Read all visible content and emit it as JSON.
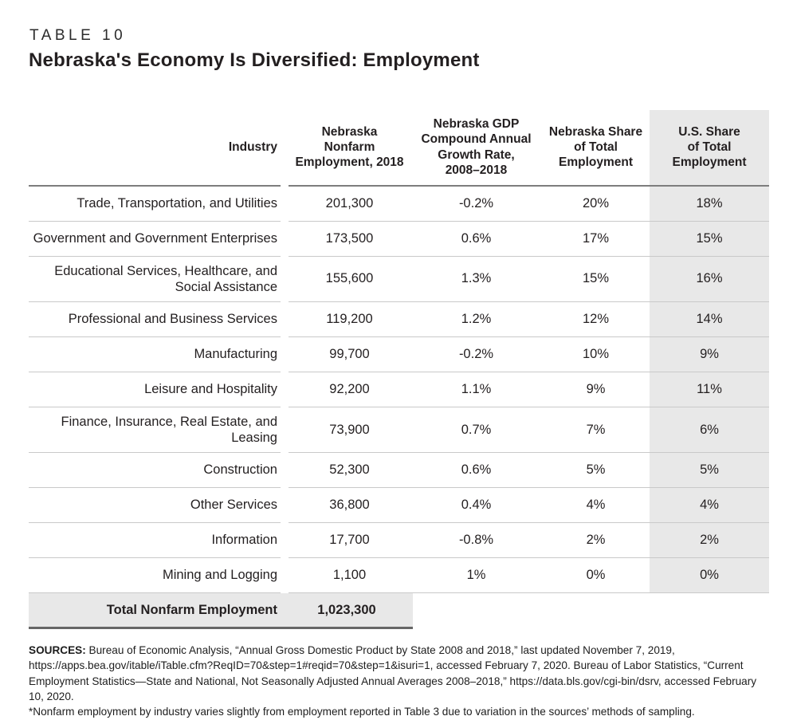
{
  "header": {
    "eyebrow": "TABLE 10",
    "title": "Nebraska's Economy Is Diversified: Employment"
  },
  "table": {
    "columns": [
      "Industry",
      "Nebraska\nNonfarm\nEmployment, 2018",
      "Nebraska GDP\nCompound Annual\nGrowth Rate,\n2008–2018",
      "Nebraska Share\nof Total\nEmployment",
      "U.S. Share\nof Total\nEmployment"
    ],
    "rows": [
      {
        "industry": "Trade, Transportation, and Utilities",
        "employment_2018": "201,300",
        "gdp_cagr": "-0.2%",
        "ne_share": "20%",
        "us_share": "18%"
      },
      {
        "industry": "Government and Government Enterprises",
        "employment_2018": "173,500",
        "gdp_cagr": "0.6%",
        "ne_share": "17%",
        "us_share": "15%"
      },
      {
        "industry": "Educational Services, Healthcare, and Social Assistance",
        "employment_2018": "155,600",
        "gdp_cagr": "1.3%",
        "ne_share": "15%",
        "us_share": "16%"
      },
      {
        "industry": "Professional and Business Services",
        "employment_2018": "119,200",
        "gdp_cagr": "1.2%",
        "ne_share": "12%",
        "us_share": "14%"
      },
      {
        "industry": "Manufacturing",
        "employment_2018": "99,700",
        "gdp_cagr": "-0.2%",
        "ne_share": "10%",
        "us_share": "9%"
      },
      {
        "industry": "Leisure and Hospitality",
        "employment_2018": "92,200",
        "gdp_cagr": "1.1%",
        "ne_share": "9%",
        "us_share": "11%"
      },
      {
        "industry": "Finance, Insurance, Real Estate, and Leasing",
        "employment_2018": "73,900",
        "gdp_cagr": "0.7%",
        "ne_share": "7%",
        "us_share": "6%"
      },
      {
        "industry": "Construction",
        "employment_2018": "52,300",
        "gdp_cagr": "0.6%",
        "ne_share": "5%",
        "us_share": "5%"
      },
      {
        "industry": "Other Services",
        "employment_2018": "36,800",
        "gdp_cagr": "0.4%",
        "ne_share": "4%",
        "us_share": "4%"
      },
      {
        "industry": "Information",
        "employment_2018": "17,700",
        "gdp_cagr": "-0.8%",
        "ne_share": "2%",
        "us_share": "2%"
      },
      {
        "industry": "Mining and Logging",
        "employment_2018": "1,100",
        "gdp_cagr": "1%",
        "ne_share": "0%",
        "us_share": "0%"
      }
    ],
    "total": {
      "label": "Total Nonfarm Employment",
      "value": "1,023,300"
    }
  },
  "notes": {
    "sources_label": "SOURCES:",
    "sources_text": " Bureau of Economic Analysis, “Annual Gross Domestic Product by State 2008 and 2018,” last updated November 7, 2019, https://apps.bea.gov/itable/iTable.cfm?ReqID=70&step=1#reqid=70&step=1&isuri=1, accessed February 7, 2020. Bureau of Labor Statistics, “Current Employment Statistics—State and National, Not Seasonally Adjusted Annual Averages 2008–2018,” https://data.bls.gov/cgi-bin/dsrv, accessed February 10, 2020.",
    "footnote": "*Nonfarm employment by industry varies slightly from employment reported in Table 3 due to variation in the sources’ methods of sampling."
  },
  "colors": {
    "shaded_column": "#e8e8e8",
    "shaded_total_row": "#e8e8e8",
    "row_separator": "#c9c9c9",
    "header_rule": "#7d7d7d",
    "total_rule": "#666666",
    "text": "#231f20"
  }
}
